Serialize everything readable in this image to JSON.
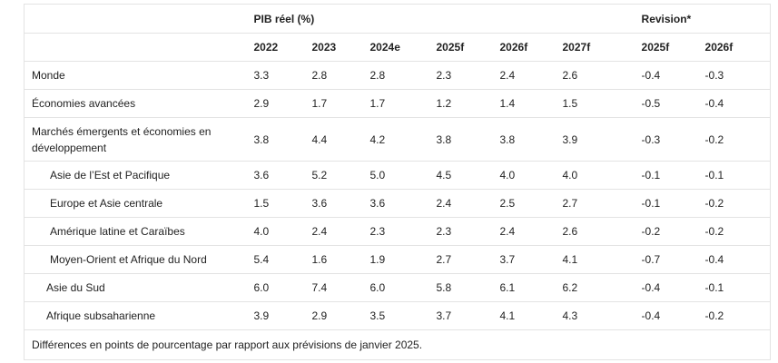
{
  "table": {
    "group_header_gdp": "PIB réel (%)",
    "group_header_revision": "Revision*",
    "years": [
      "2022",
      "2023",
      "2024e",
      "2025f",
      "2026f",
      "2027f"
    ],
    "revision_years": [
      "2025f",
      "2026f"
    ],
    "rows": [
      {
        "label": "Monde",
        "values": [
          "3.3",
          "2.8",
          "2.8",
          "2.3",
          "2.4",
          "2.6"
        ],
        "rev": [
          "-0.4",
          "-0.3"
        ]
      },
      {
        "label": "Économies avancées",
        "values": [
          "2.9",
          "1.7",
          "1.7",
          "1.2",
          "1.4",
          "1.5"
        ],
        "rev": [
          "-0.5",
          "-0.4"
        ]
      },
      {
        "label": "Marchés émergents et économies en développement",
        "values": [
          "3.8",
          "4.4",
          "4.2",
          "3.8",
          "3.8",
          "3.9"
        ],
        "rev": [
          "-0.3",
          "-0.2"
        ]
      },
      {
        "label": "Asie de l’Est et Pacifique",
        "values": [
          "3.6",
          "5.2",
          "5.0",
          "4.5",
          "4.0",
          "4.0"
        ],
        "rev": [
          "-0.1",
          "-0.1"
        ]
      },
      {
        "label": "Europe et Asie centrale",
        "values": [
          "1.5",
          "3.6",
          "3.6",
          "2.4",
          "2.5",
          "2.7"
        ],
        "rev": [
          "-0.1",
          "-0.2"
        ]
      },
      {
        "label": "Amérique latine et Caraïbes",
        "values": [
          "4.0",
          "2.4",
          "2.3",
          "2.3",
          "2.4",
          "2.6"
        ],
        "rev": [
          "-0.2",
          "-0.2"
        ]
      },
      {
        "label": "Moyen-Orient et Afrique du Nord",
        "values": [
          "5.4",
          "1.6",
          "1.9",
          "2.7",
          "3.7",
          "4.1"
        ],
        "rev": [
          "-0.7",
          "-0.4"
        ]
      },
      {
        "label": "Asie du Sud",
        "values": [
          "6.0",
          "7.4",
          "6.0",
          "5.8",
          "6.1",
          "6.2"
        ],
        "rev": [
          "-0.4",
          "-0.1"
        ]
      },
      {
        "label": "Afrique subsaharienne",
        "values": [
          "3.9",
          "2.9",
          "3.5",
          "3.7",
          "4.1",
          "4.3"
        ],
        "rev": [
          "-0.4",
          "-0.2"
        ]
      }
    ],
    "footnote": "Différences en points de pourcentage par rapport aux prévisions de janvier 2025."
  }
}
